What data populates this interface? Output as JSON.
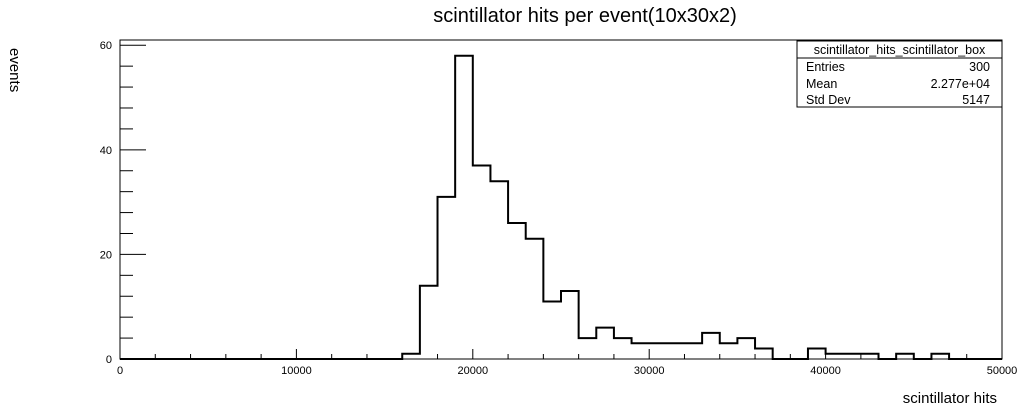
{
  "chart_data": {
    "type": "histogram",
    "title": "scintillator hits per event(10x30x2)",
    "xlabel": "scintillator hits",
    "ylabel": "events",
    "xlim": [
      0,
      50000
    ],
    "ylim": [
      0,
      61
    ],
    "bin_width": 1000,
    "bin_start": 0,
    "values": [
      0,
      0,
      0,
      0,
      0,
      0,
      0,
      0,
      0,
      0,
      0,
      0,
      0,
      0,
      0,
      0,
      1,
      14,
      31,
      58,
      37,
      34,
      26,
      23,
      11,
      13,
      4,
      6,
      4,
      3,
      3,
      3,
      3,
      5,
      3,
      4,
      2,
      0,
      0,
      2,
      1,
      1,
      1,
      0,
      1,
      0,
      1,
      0,
      0,
      0
    ],
    "x_ticks": [
      {
        "value": 0,
        "label": "0"
      },
      {
        "value": 10000,
        "label": "10000"
      },
      {
        "value": 20000,
        "label": "20000"
      },
      {
        "value": 30000,
        "label": "30000"
      },
      {
        "value": 40000,
        "label": "40000"
      },
      {
        "value": 50000,
        "label": "50000"
      }
    ],
    "y_ticks": [
      {
        "value": 0,
        "label": "0"
      },
      {
        "value": 20,
        "label": "20"
      },
      {
        "value": 40,
        "label": "40"
      },
      {
        "value": 60,
        "label": "60"
      }
    ],
    "x_minor_step": 2000,
    "y_minor_step": 4,
    "grid": false,
    "legend": "none",
    "line_color": "#000000",
    "stats_box": {
      "placement": "top-right",
      "name": "scintillator_hits_scintillator_box",
      "rows": [
        {
          "label": "Entries",
          "value": "300"
        },
        {
          "label": "Mean",
          "value": "2.277e+04"
        },
        {
          "label": "Std Dev",
          "value": "5147"
        }
      ]
    }
  }
}
